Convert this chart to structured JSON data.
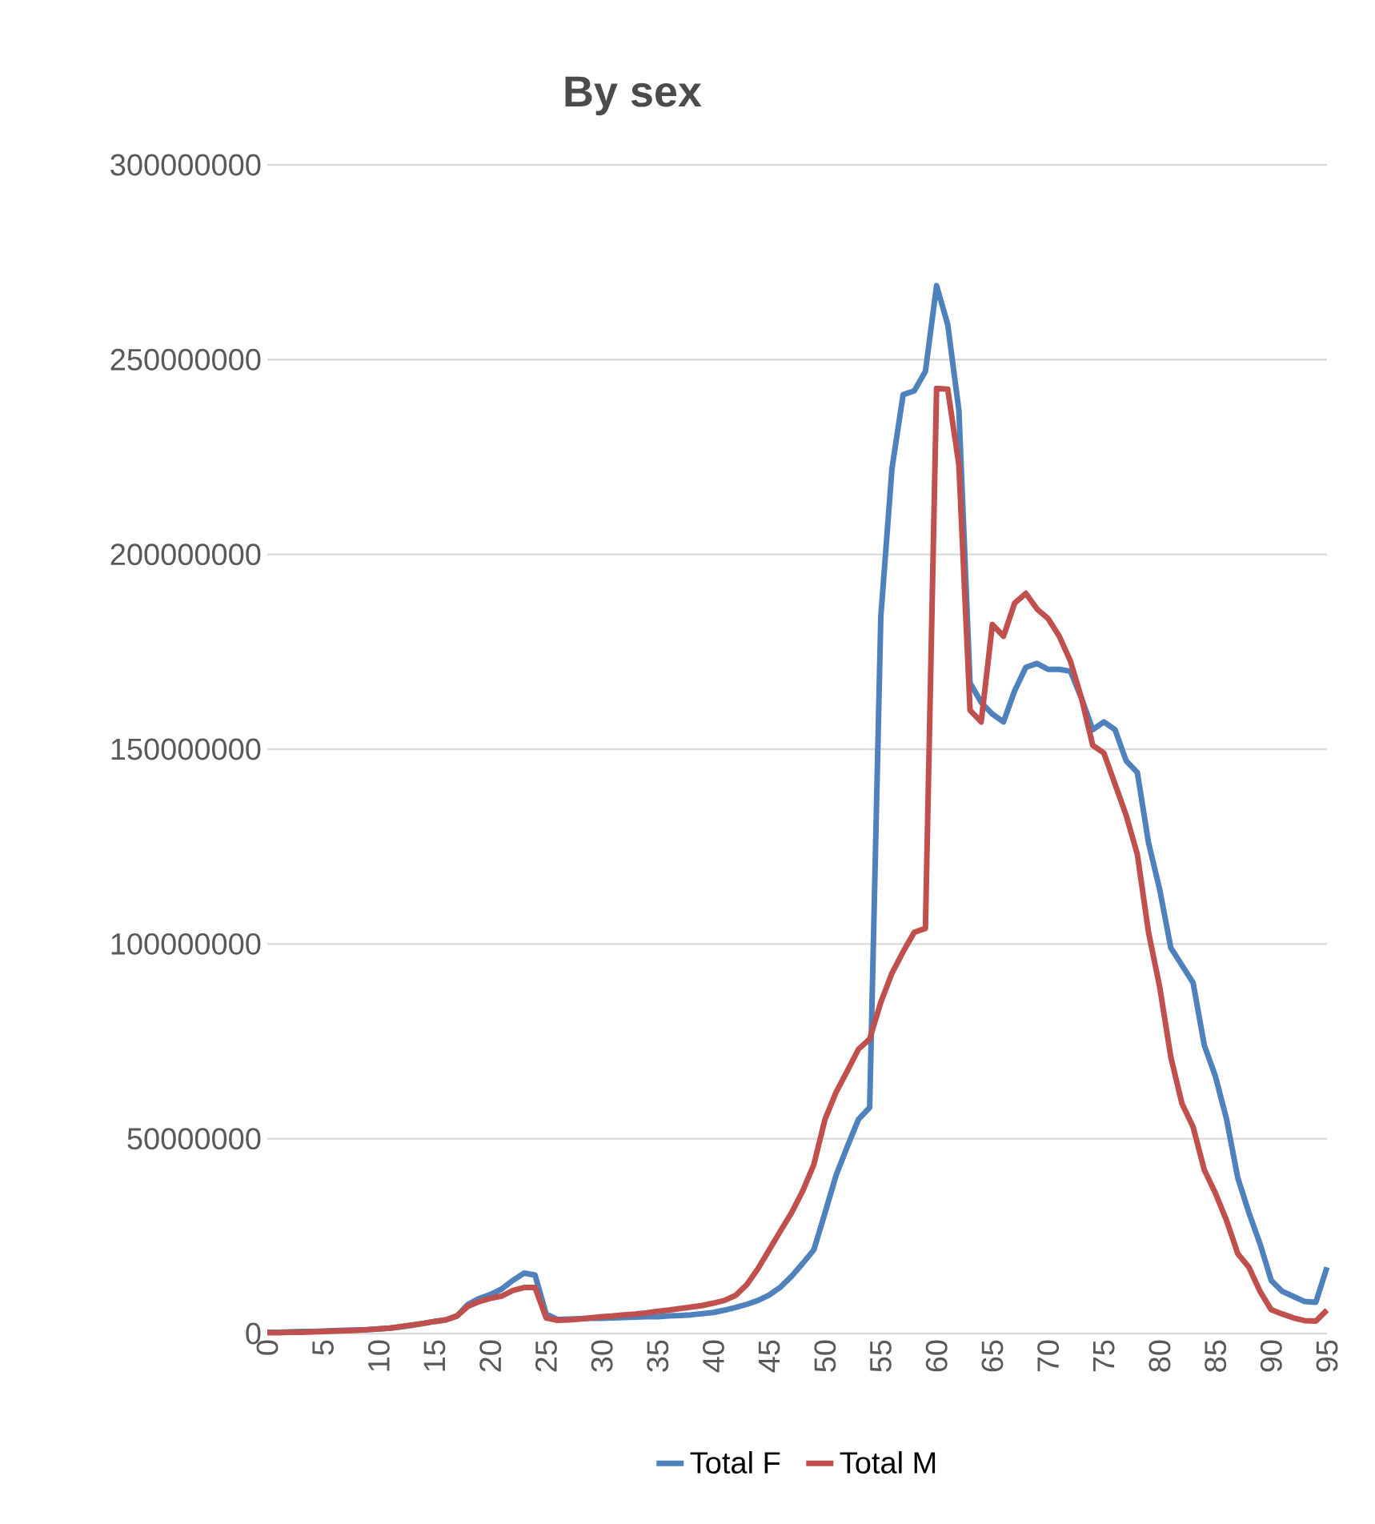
{
  "chart_data": {
    "type": "line",
    "title": "By sex",
    "x": [
      0,
      1,
      2,
      3,
      4,
      5,
      6,
      7,
      8,
      9,
      10,
      11,
      12,
      13,
      14,
      15,
      16,
      17,
      18,
      19,
      20,
      21,
      22,
      23,
      24,
      25,
      26,
      27,
      28,
      29,
      30,
      31,
      32,
      33,
      34,
      35,
      36,
      37,
      38,
      39,
      40,
      41,
      42,
      43,
      44,
      45,
      46,
      47,
      48,
      49,
      50,
      51,
      52,
      53,
      54,
      55,
      56,
      57,
      58,
      59,
      60,
      61,
      62,
      63,
      64,
      65,
      66,
      67,
      68,
      69,
      70,
      71,
      72,
      73,
      74,
      75,
      76,
      77,
      78,
      79,
      80,
      81,
      82,
      83,
      84,
      85,
      86,
      87,
      88,
      89,
      90,
      91,
      92,
      93,
      94,
      95
    ],
    "series": [
      {
        "name": "Total F",
        "color": "#4f81bd",
        "values": [
          300000,
          300000,
          400000,
          500000,
          500000,
          600000,
          700000,
          800000,
          900000,
          1000000,
          1200000,
          1400000,
          1700000,
          2100000,
          2600000,
          3100000,
          3500000,
          4500000,
          7500000,
          9000000,
          10000000,
          11400000,
          13600000,
          15500000,
          15000000,
          5000000,
          3600000,
          3700000,
          3800000,
          3900000,
          3900000,
          4000000,
          4100000,
          4200000,
          4300000,
          4300000,
          4500000,
          4600000,
          4800000,
          5100000,
          5400000,
          6000000,
          6700000,
          7500000,
          8500000,
          9900000,
          11900000,
          14700000,
          18000000,
          21500000,
          31000000,
          40700000,
          48000000,
          55000000,
          58000000,
          184000000,
          222000000,
          241000000,
          242000000,
          247000000,
          269000000,
          259000000,
          237000000,
          167000000,
          162000000,
          159000000,
          157000000,
          165000000,
          171000000,
          172000000,
          170500000,
          170500000,
          170000000,
          163000000,
          155000000,
          157000000,
          155000000,
          147000000,
          144000000,
          126000000,
          114000000,
          99000000,
          94500000,
          90000000,
          74000000,
          66000000,
          55000000,
          40000000,
          31000000,
          23000000,
          13600000,
          10800000,
          9500000,
          8200000,
          8000000,
          17000000
        ]
      },
      {
        "name": "Total M",
        "color": "#c0504d",
        "values": [
          200000,
          200000,
          300000,
          300000,
          400000,
          500000,
          600000,
          700000,
          800000,
          1000000,
          1200000,
          1400000,
          1800000,
          2200000,
          2600000,
          3100000,
          3500000,
          4500000,
          7000000,
          8200000,
          9000000,
          9600000,
          11000000,
          11800000,
          11800000,
          4000000,
          3400000,
          3500000,
          3700000,
          4000000,
          4300000,
          4500000,
          4800000,
          5000000,
          5300000,
          5700000,
          6000000,
          6400000,
          6800000,
          7200000,
          7800000,
          8500000,
          9800000,
          12600000,
          16700000,
          21500000,
          26300000,
          31000000,
          36600000,
          43400000,
          55000000,
          62000000,
          67400000,
          73000000,
          75600000,
          85000000,
          92500000,
          98000000,
          103000000,
          104000000,
          242600000,
          242400000,
          223000000,
          160000000,
          157000000,
          182000000,
          179000000,
          187500000,
          190000000,
          186000000,
          183500000,
          179000000,
          172600000,
          163000000,
          151000000,
          149000000,
          141000000,
          133000000,
          123000000,
          103000000,
          89000000,
          71000000,
          59000000,
          53000000,
          42000000,
          36000000,
          29000000,
          20500000,
          17000000,
          10800000,
          6100000,
          5000000,
          4000000,
          3300000,
          3200000,
          6000000
        ]
      }
    ],
    "xlim": [
      0,
      95
    ],
    "xticks": [
      0,
      5,
      10,
      15,
      20,
      25,
      30,
      35,
      40,
      45,
      50,
      55,
      60,
      65,
      70,
      75,
      80,
      85,
      90,
      95
    ],
    "ylim": [
      0,
      300000000
    ],
    "yticks": [
      0,
      50000000,
      100000000,
      150000000,
      200000000,
      250000000,
      300000000
    ],
    "grid": "y",
    "legend": "bottom",
    "marker": "none",
    "line_style": "solid"
  }
}
